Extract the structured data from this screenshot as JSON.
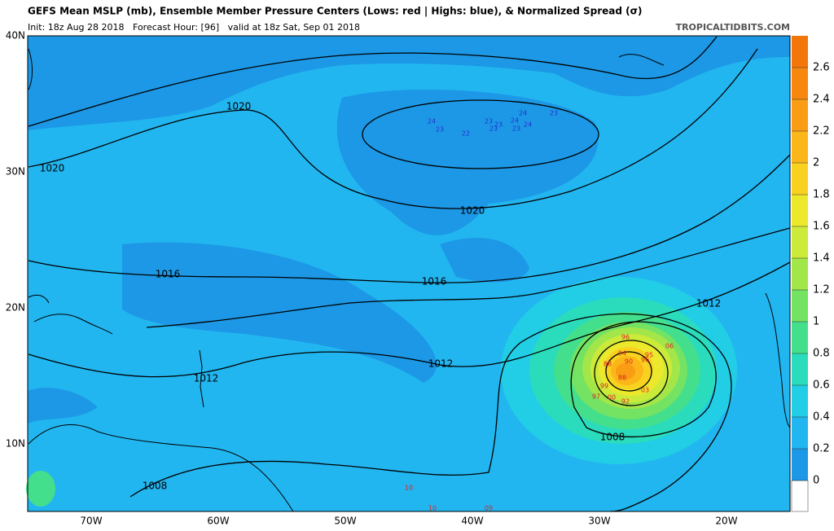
{
  "header": {
    "title": "GEFS Mean MSLP (mb), Ensemble Member Pressure Centers (Lows: red | Highs: blue), & Normalized Spread (σ)",
    "subtitle": "Init: 18z Aug 28 2018   Forecast Hour: [96]   valid at 18z Sat, Sep 01 2018",
    "credit": "TROPICALTIDBITS.COM"
  },
  "map": {
    "lat_labels": [
      {
        "value": 40,
        "label": "40N"
      },
      {
        "value": 30,
        "label": "30N"
      },
      {
        "value": 20,
        "label": "20N"
      },
      {
        "value": 10,
        "label": "10N"
      }
    ],
    "lon_labels": [
      {
        "value": -70,
        "label": "70W"
      },
      {
        "value": -60,
        "label": "60W"
      },
      {
        "value": -50,
        "label": "50W"
      },
      {
        "value": -40,
        "label": "40W"
      },
      {
        "value": -30,
        "label": "30W"
      },
      {
        "value": -20,
        "label": "20W"
      }
    ],
    "isobar_labels": [
      1020,
      1020,
      1020,
      1016,
      1016,
      1012,
      1012,
      1012,
      1008,
      1008
    ],
    "high_centers": [
      "24",
      "23",
      "22",
      "23",
      "23",
      "24",
      "23",
      "24",
      "24",
      "23",
      "23"
    ],
    "low_centers": [
      "96",
      "94",
      "88",
      "90",
      "96",
      "95",
      "06",
      "88",
      "99",
      "00",
      "03",
      "92",
      "97",
      "10",
      "10",
      "09"
    ]
  },
  "colorbar": {
    "ticks": [
      0,
      0.2,
      0.4,
      0.6,
      0.8,
      1,
      1.2,
      1.4,
      1.6,
      1.8,
      2,
      2.2,
      2.4,
      2.6
    ],
    "colors": [
      "#ffffff",
      "#1c98e6",
      "#22b6f0",
      "#22cde6",
      "#2adcbc",
      "#44df8c",
      "#74e262",
      "#a2e64a",
      "#cbea3a",
      "#ece82c",
      "#f8d21f",
      "#fbb61a",
      "#fa9c14",
      "#f7870e",
      "#f3760a"
    ]
  }
}
